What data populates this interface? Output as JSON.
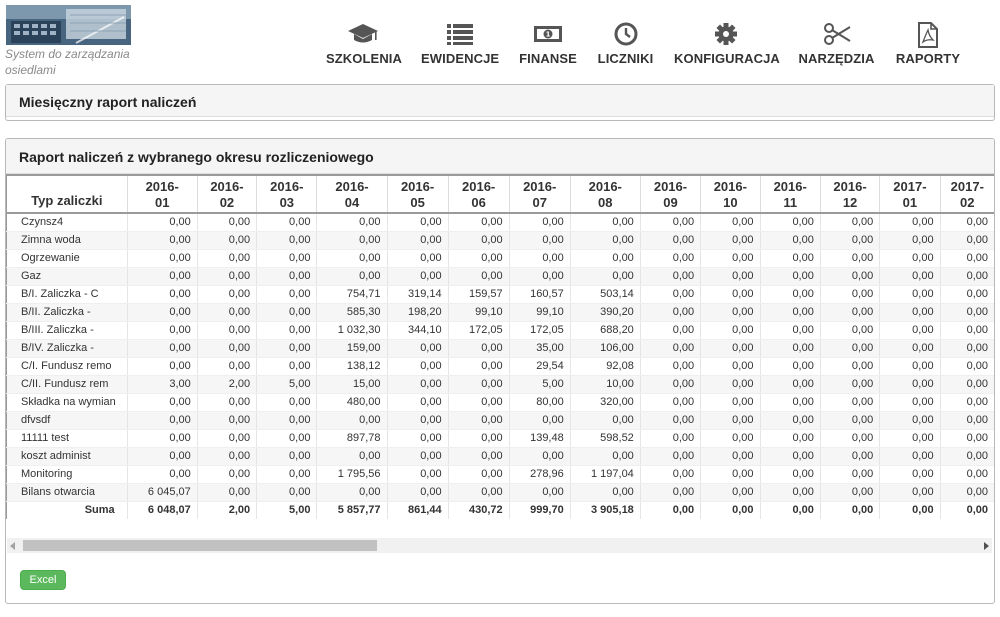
{
  "logo": {
    "tagline": "System do zarządzania osiedlami"
  },
  "nav": [
    {
      "label": "SZKOLENIA",
      "icon": "graduation-cap-icon"
    },
    {
      "label": "EWIDENCJE",
      "icon": "list-icon"
    },
    {
      "label": "FINANSE",
      "icon": "money-icon"
    },
    {
      "label": "LICZNIKI",
      "icon": "clock-icon"
    },
    {
      "label": "KONFIGURACJA",
      "icon": "gear-icon"
    },
    {
      "label": "NARZĘDZIA",
      "icon": "scissors-icon"
    },
    {
      "label": "RAPORTY",
      "icon": "pdf-file-icon"
    }
  ],
  "panel_monthly": {
    "title": "Miesięczny raport naliczeń"
  },
  "panel_report": {
    "title": "Raport naliczeń z wybranego okresu rozliczeniowego",
    "first_col_header": "Typ zaliczki",
    "columns": [
      [
        "2016-",
        "01"
      ],
      [
        "2016-",
        "02"
      ],
      [
        "2016-",
        "03"
      ],
      [
        "2016-",
        "04"
      ],
      [
        "2016-",
        "05"
      ],
      [
        "2016-",
        "06"
      ],
      [
        "2016-",
        "07"
      ],
      [
        "2016-",
        "08"
      ],
      [
        "2016-",
        "09"
      ],
      [
        "2016-",
        "10"
      ],
      [
        "2016-",
        "11"
      ],
      [
        "2016-",
        "12"
      ],
      [
        "2017-",
        "01"
      ],
      [
        "2017-",
        "02"
      ]
    ],
    "rows": [
      {
        "label": "Czynsz4",
        "values": [
          "0,00",
          "0,00",
          "0,00",
          "0,00",
          "0,00",
          "0,00",
          "0,00",
          "0,00",
          "0,00",
          "0,00",
          "0,00",
          "0,00",
          "0,00",
          "0,00"
        ]
      },
      {
        "label": "Zimna woda",
        "values": [
          "0,00",
          "0,00",
          "0,00",
          "0,00",
          "0,00",
          "0,00",
          "0,00",
          "0,00",
          "0,00",
          "0,00",
          "0,00",
          "0,00",
          "0,00",
          "0,00"
        ]
      },
      {
        "label": "Ogrzewanie",
        "values": [
          "0,00",
          "0,00",
          "0,00",
          "0,00",
          "0,00",
          "0,00",
          "0,00",
          "0,00",
          "0,00",
          "0,00",
          "0,00",
          "0,00",
          "0,00",
          "0,00"
        ]
      },
      {
        "label": "Gaz",
        "values": [
          "0,00",
          "0,00",
          "0,00",
          "0,00",
          "0,00",
          "0,00",
          "0,00",
          "0,00",
          "0,00",
          "0,00",
          "0,00",
          "0,00",
          "0,00",
          "0,00"
        ]
      },
      {
        "label": "B/I. Zaliczka - C",
        "values": [
          "0,00",
          "0,00",
          "0,00",
          "754,71",
          "319,14",
          "159,57",
          "160,57",
          "503,14",
          "0,00",
          "0,00",
          "0,00",
          "0,00",
          "0,00",
          "0,00"
        ]
      },
      {
        "label": "B/II. Zaliczka -",
        "values": [
          "0,00",
          "0,00",
          "0,00",
          "585,30",
          "198,20",
          "99,10",
          "99,10",
          "390,20",
          "0,00",
          "0,00",
          "0,00",
          "0,00",
          "0,00",
          "0,00"
        ]
      },
      {
        "label": "B/III. Zaliczka -",
        "values": [
          "0,00",
          "0,00",
          "0,00",
          "1 032,30",
          "344,10",
          "172,05",
          "172,05",
          "688,20",
          "0,00",
          "0,00",
          "0,00",
          "0,00",
          "0,00",
          "0,00"
        ]
      },
      {
        "label": "B/IV. Zaliczka -",
        "values": [
          "0,00",
          "0,00",
          "0,00",
          "159,00",
          "0,00",
          "0,00",
          "35,00",
          "106,00",
          "0,00",
          "0,00",
          "0,00",
          "0,00",
          "0,00",
          "0,00"
        ]
      },
      {
        "label": "C/I. Fundusz remo",
        "values": [
          "0,00",
          "0,00",
          "0,00",
          "138,12",
          "0,00",
          "0,00",
          "29,54",
          "92,08",
          "0,00",
          "0,00",
          "0,00",
          "0,00",
          "0,00",
          "0,00"
        ]
      },
      {
        "label": "C/II. Fundusz rem",
        "values": [
          "3,00",
          "2,00",
          "5,00",
          "15,00",
          "0,00",
          "0,00",
          "5,00",
          "10,00",
          "0,00",
          "0,00",
          "0,00",
          "0,00",
          "0,00",
          "0,00"
        ]
      },
      {
        "label": "Składka na wymian",
        "values": [
          "0,00",
          "0,00",
          "0,00",
          "480,00",
          "0,00",
          "0,00",
          "80,00",
          "320,00",
          "0,00",
          "0,00",
          "0,00",
          "0,00",
          "0,00",
          "0,00"
        ]
      },
      {
        "label": "dfvsdf",
        "values": [
          "0,00",
          "0,00",
          "0,00",
          "0,00",
          "0,00",
          "0,00",
          "0,00",
          "0,00",
          "0,00",
          "0,00",
          "0,00",
          "0,00",
          "0,00",
          "0,00"
        ]
      },
      {
        "label": "11111 test",
        "values": [
          "0,00",
          "0,00",
          "0,00",
          "897,78",
          "0,00",
          "0,00",
          "139,48",
          "598,52",
          "0,00",
          "0,00",
          "0,00",
          "0,00",
          "0,00",
          "0,00"
        ]
      },
      {
        "label": "koszt administ",
        "values": [
          "0,00",
          "0,00",
          "0,00",
          "0,00",
          "0,00",
          "0,00",
          "0,00",
          "0,00",
          "0,00",
          "0,00",
          "0,00",
          "0,00",
          "0,00",
          "0,00"
        ]
      },
      {
        "label": "Monitoring",
        "values": [
          "0,00",
          "0,00",
          "0,00",
          "1 795,56",
          "0,00",
          "0,00",
          "278,96",
          "1 197,04",
          "0,00",
          "0,00",
          "0,00",
          "0,00",
          "0,00",
          "0,00"
        ]
      },
      {
        "label": "Bilans otwarcia",
        "values": [
          "6 045,07",
          "0,00",
          "0,00",
          "0,00",
          "0,00",
          "0,00",
          "0,00",
          "0,00",
          "0,00",
          "0,00",
          "0,00",
          "0,00",
          "0,00",
          "0,00"
        ]
      }
    ],
    "sum_row": {
      "label": "Suma",
      "values": [
        "6 048,07",
        "2,00",
        "5,00",
        "5 857,77",
        "861,44",
        "430,72",
        "999,70",
        "3 905,18",
        "0,00",
        "0,00",
        "0,00",
        "0,00",
        "0,00",
        "0,00"
      ]
    }
  },
  "excel_button": {
    "label": "Excel",
    "color": "#5cb85c"
  }
}
